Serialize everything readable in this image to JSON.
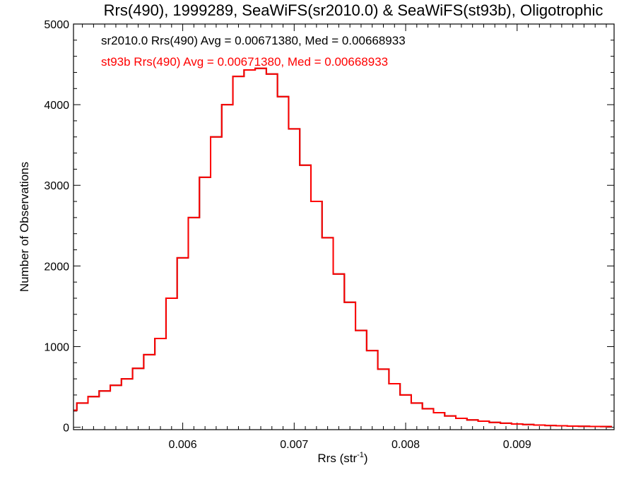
{
  "chart_data": {
    "type": "line",
    "title": "Rrs(490), 1999289, SeaWiFS(sr2010.0) & SeaWiFS(st93b), Oligotrophic",
    "xlabel": "Rrs (str",
    "xlabel_superscript": "-1",
    "xlabel_suffix": ")",
    "ylabel": "Number of Observations",
    "xlim": [
      0.00502,
      0.00987
    ],
    "ylim": [
      -30,
      5000
    ],
    "x_ticks": [
      0.006,
      0.007,
      0.008,
      0.009
    ],
    "x_tick_labels": [
      "0.006",
      "0.007",
      "0.008",
      "0.009"
    ],
    "y_ticks": [
      0,
      1000,
      2000,
      3000,
      4000,
      5000
    ],
    "y_tick_labels": [
      "0",
      "1000",
      "2000",
      "3000",
      "4000",
      "5000"
    ],
    "grid": false,
    "legend_position": "top-left",
    "annotations": [
      {
        "text": "sr2010.0 Rrs(490) Avg = 0.00671380, Med = 0.00668933",
        "color": "#000000"
      },
      {
        "text": "st93b Rrs(490) Avg = 0.00671380, Med = 0.00668933",
        "color": "#ff0000"
      }
    ],
    "series": [
      {
        "name": "sr2010.0",
        "color": "#000000",
        "drawstyle": "steps",
        "x": [
          0.005,
          0.0051,
          0.0052,
          0.0053,
          0.0054,
          0.0055,
          0.0056,
          0.0057,
          0.0058,
          0.0059,
          0.006,
          0.0061,
          0.0062,
          0.0063,
          0.0064,
          0.0065,
          0.0066,
          0.0067,
          0.0068,
          0.0069,
          0.007,
          0.0071,
          0.0072,
          0.0073,
          0.0074,
          0.0075,
          0.0076,
          0.0077,
          0.0078,
          0.0079,
          0.008,
          0.0081,
          0.0082,
          0.0083,
          0.0084,
          0.0085,
          0.0086,
          0.0087,
          0.0088,
          0.0089,
          0.009,
          0.0091,
          0.0092,
          0.0093,
          0.0094,
          0.0095,
          0.0096,
          0.0097,
          0.0098
        ],
        "y": [
          210,
          300,
          380,
          450,
          520,
          600,
          730,
          900,
          1100,
          1600,
          2100,
          2600,
          3100,
          3600,
          4000,
          4350,
          4430,
          4450,
          4380,
          4100,
          3700,
          3250,
          2800,
          2350,
          1900,
          1550,
          1200,
          950,
          720,
          540,
          400,
          300,
          230,
          180,
          140,
          110,
          90,
          75,
          60,
          50,
          40,
          33,
          27,
          22,
          18,
          14,
          12,
          10,
          8
        ]
      },
      {
        "name": "st93b",
        "color": "#ff0000",
        "drawstyle": "steps",
        "x": [
          0.005,
          0.0051,
          0.0052,
          0.0053,
          0.0054,
          0.0055,
          0.0056,
          0.0057,
          0.0058,
          0.0059,
          0.006,
          0.0061,
          0.0062,
          0.0063,
          0.0064,
          0.0065,
          0.0066,
          0.0067,
          0.0068,
          0.0069,
          0.007,
          0.0071,
          0.0072,
          0.0073,
          0.0074,
          0.0075,
          0.0076,
          0.0077,
          0.0078,
          0.0079,
          0.008,
          0.0081,
          0.0082,
          0.0083,
          0.0084,
          0.0085,
          0.0086,
          0.0087,
          0.0088,
          0.0089,
          0.009,
          0.0091,
          0.0092,
          0.0093,
          0.0094,
          0.0095,
          0.0096,
          0.0097,
          0.0098
        ],
        "y": [
          210,
          300,
          380,
          450,
          520,
          600,
          730,
          900,
          1100,
          1600,
          2100,
          2600,
          3100,
          3600,
          4000,
          4350,
          4430,
          4450,
          4380,
          4100,
          3700,
          3250,
          2800,
          2350,
          1900,
          1550,
          1200,
          950,
          720,
          540,
          400,
          300,
          230,
          180,
          140,
          110,
          90,
          75,
          60,
          50,
          40,
          33,
          27,
          22,
          18,
          14,
          12,
          10,
          8
        ]
      }
    ]
  }
}
